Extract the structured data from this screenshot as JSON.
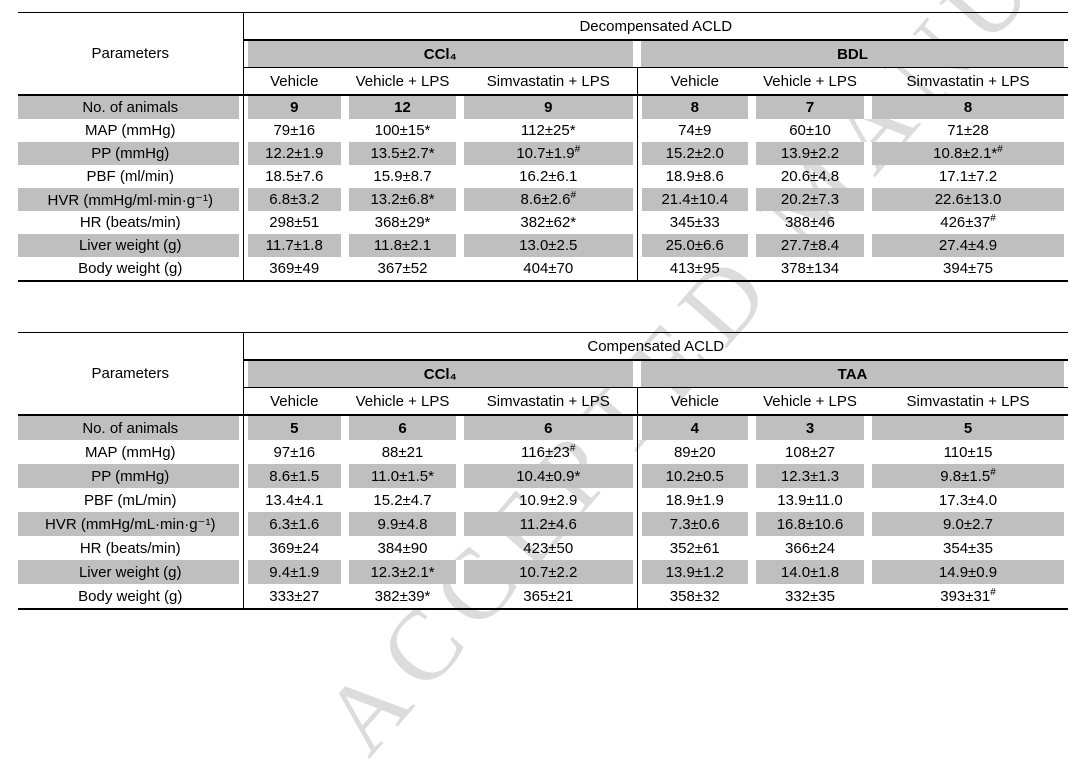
{
  "watermark": {
    "text": "ACCEPTED MANUSCRIPT"
  },
  "style": {
    "shading_color": "#bfbfbf",
    "border_color": "#000000"
  },
  "tables": [
    {
      "title": "Decompensated ACLD",
      "parameters_header": "Parameters",
      "groups": [
        {
          "name": "CCl₄",
          "subcolumns": [
            "Vehicle",
            "Vehicle + LPS",
            "Simvastatin + LPS"
          ]
        },
        {
          "name": "BDL",
          "subcolumns": [
            "Vehicle",
            "Vehicle + LPS",
            "Simvastatin + LPS"
          ]
        }
      ],
      "rows": [
        {
          "label": "No. of animals",
          "shaded": true,
          "bold_values": true,
          "values": [
            "9",
            "12",
            "9",
            "8",
            "7",
            "8"
          ]
        },
        {
          "label": "MAP (mmHg)",
          "shaded": false,
          "bold_values": false,
          "values": [
            "79±16",
            "100±15*",
            "112±25*",
            "74±9",
            "60±10",
            "71±28"
          ]
        },
        {
          "label": "PP (mmHg)",
          "shaded": true,
          "bold_values": false,
          "values": [
            "12.2±1.9",
            "13.5±2.7*",
            "10.7±1.9#",
            "15.2±2.0",
            "13.9±2.2",
            "10.8±2.1*#"
          ]
        },
        {
          "label": "PBF (ml/min)",
          "shaded": false,
          "bold_values": false,
          "values": [
            "18.5±7.6",
            "15.9±8.7",
            "16.2±6.1",
            "18.9±8.6",
            "20.6±4.8",
            "17.1±7.2"
          ]
        },
        {
          "label": "HVR (mmHg/ml·min·g⁻¹)",
          "shaded": true,
          "bold_values": false,
          "values": [
            "6.8±3.2",
            "13.2±6.8*",
            "8.6±2.6#",
            "21.4±10.4",
            "20.2±7.3",
            "22.6±13.0"
          ]
        },
        {
          "label": "HR (beats/min)",
          "shaded": false,
          "bold_values": false,
          "values": [
            "298±51",
            "368±29*",
            "382±62*",
            "345±33",
            "388±46",
            "426±37#"
          ]
        },
        {
          "label": "Liver weight (g)",
          "shaded": true,
          "bold_values": false,
          "values": [
            "11.7±1.8",
            "11.8±2.1",
            "13.0±2.5",
            "25.0±6.6",
            "27.7±8.4",
            "27.4±4.9"
          ]
        },
        {
          "label": "Body weight (g)",
          "shaded": false,
          "bold_values": false,
          "values": [
            "369±49",
            "367±52",
            "404±70",
            "413±95",
            "378±134",
            "394±75"
          ]
        }
      ]
    },
    {
      "title": "Compensated ACLD",
      "parameters_header": "Parameters",
      "groups": [
        {
          "name": "CCl₄",
          "subcolumns": [
            "Vehicle",
            "Vehicle + LPS",
            "Simvastatin + LPS"
          ]
        },
        {
          "name": "TAA",
          "subcolumns": [
            "Vehicle",
            "Vehicle + LPS",
            "Simvastatin + LPS"
          ]
        }
      ],
      "rows": [
        {
          "label": "No. of animals",
          "shaded": true,
          "bold_values": true,
          "values": [
            "5",
            "6",
            "6",
            "4",
            "3",
            "5"
          ]
        },
        {
          "label": "MAP (mmHg)",
          "shaded": false,
          "bold_values": false,
          "values": [
            "97±16",
            "88±21",
            "116±23#",
            "89±20",
            "108±27",
            "110±15"
          ]
        },
        {
          "label": "PP (mmHg)",
          "shaded": true,
          "bold_values": false,
          "values": [
            "8.6±1.5",
            "11.0±1.5*",
            "10.4±0.9*",
            "10.2±0.5",
            "12.3±1.3",
            "9.8±1.5#"
          ]
        },
        {
          "label": "PBF (mL/min)",
          "shaded": false,
          "bold_values": false,
          "values": [
            "13.4±4.1",
            "15.2±4.7",
            "10.9±2.9",
            "18.9±1.9",
            "13.9±11.0",
            "17.3±4.0"
          ]
        },
        {
          "label": "HVR (mmHg/mL·min·g⁻¹)",
          "shaded": true,
          "bold_values": false,
          "values": [
            "6.3±1.6",
            "9.9±4.8",
            "11.2±4.6",
            "7.3±0.6",
            "16.8±10.6",
            "9.0±2.7"
          ]
        },
        {
          "label": "HR (beats/min)",
          "shaded": false,
          "bold_values": false,
          "values": [
            "369±24",
            "384±90",
            "423±50",
            "352±61",
            "366±24",
            "354±35"
          ]
        },
        {
          "label": "Liver weight (g)",
          "shaded": true,
          "bold_values": false,
          "values": [
            "9.4±1.9",
            "12.3±2.1*",
            "10.7±2.2",
            "13.9±1.2",
            "14.0±1.8",
            "14.9±0.9"
          ]
        },
        {
          "label": "Body weight (g)",
          "shaded": false,
          "bold_values": false,
          "values": [
            "333±27",
            "382±39*",
            "365±21",
            "358±32",
            "332±35",
            "393±31#"
          ]
        }
      ]
    }
  ]
}
